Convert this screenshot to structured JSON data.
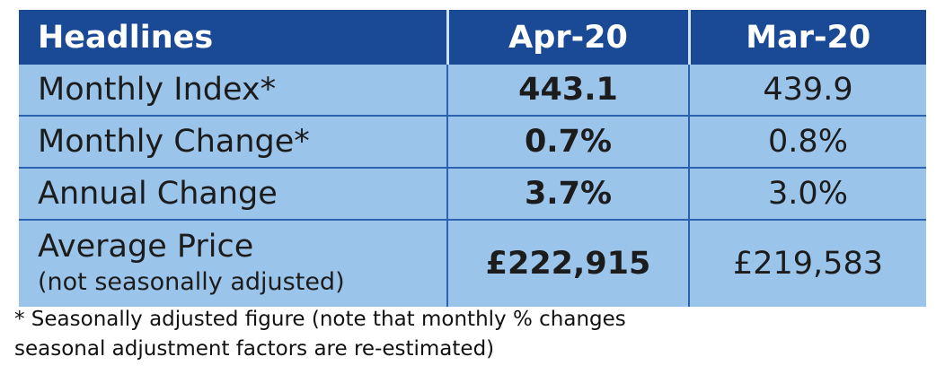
{
  "table": {
    "header": {
      "label": "Headlines",
      "col1": "Apr-20",
      "col2": "Mar-20"
    },
    "rows": [
      {
        "label": "Monthly Index*",
        "sub": "",
        "apr": "443.1",
        "mar": "439.9"
      },
      {
        "label": "Monthly Change*",
        "sub": "",
        "apr": "0.7%",
        "mar": "0.8%"
      },
      {
        "label": "Annual Change",
        "sub": "",
        "apr": "3.7%",
        "mar": "3.0%"
      },
      {
        "label": "Average Price",
        "sub": "(not seasonally adjusted)",
        "apr": "£222,915",
        "mar": "£219,583"
      }
    ]
  },
  "footnote": {
    "line1": "* Seasonally adjusted figure (note that monthly % changes",
    "line2": "seasonal adjustment factors are re-estimated)"
  },
  "colors": {
    "header_bg": "#1a4a96",
    "body_bg": "#9ac4ea",
    "grid_line": "#2b62b0"
  }
}
